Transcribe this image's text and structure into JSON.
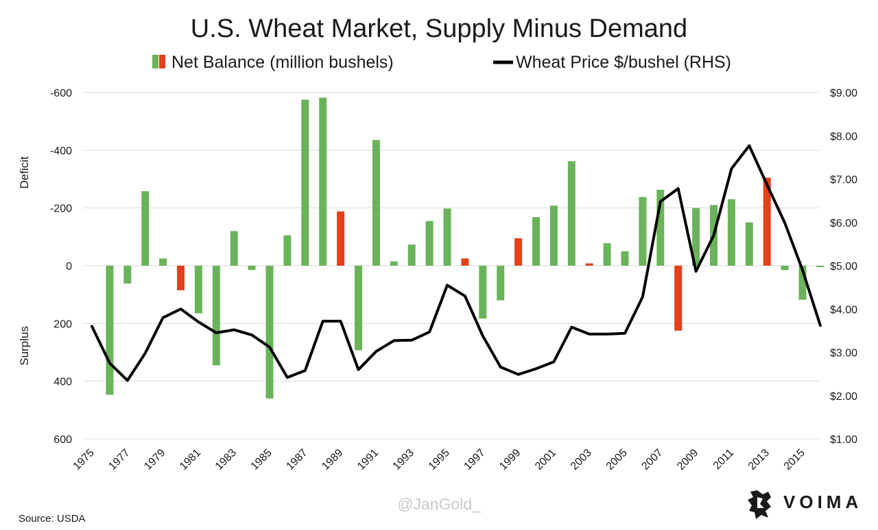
{
  "chart_data": {
    "type": "bar+line",
    "title": "U.S. Wheat Market, Supply Minus Demand",
    "legend": [
      {
        "label": "Net Balance (million bushels)",
        "swatch": [
          "#6ab35a",
          "#e3401b"
        ]
      },
      {
        "label": "Wheat Price $/bushel (RHS)",
        "swatch": [
          "#000000"
        ]
      }
    ],
    "left_axis": {
      "ticks": [
        -600,
        -400,
        -200,
        0,
        200,
        400,
        600
      ],
      "tick_labels": [
        "-600",
        "-400",
        "-200",
        "0",
        "200",
        "400",
        "600"
      ],
      "range": [
        -600,
        600
      ],
      "inverted": true,
      "side_labels": {
        "top": "Deficit",
        "bottom": "Surplus"
      }
    },
    "right_axis": {
      "ticks": [
        9,
        8,
        7,
        6,
        5,
        4,
        3,
        2,
        1
      ],
      "tick_labels": [
        "$9.00",
        "$8.00",
        "$7.00",
        "$6.00",
        "$5.00",
        "$4.00",
        "$3.00",
        "$2.00",
        "$1.00"
      ],
      "range": [
        1,
        9
      ]
    },
    "x_labels": [
      "1975",
      "1977",
      "1979",
      "1981",
      "1983",
      "1985",
      "1987",
      "1989",
      "1991",
      "1993",
      "1995",
      "1997",
      "1999",
      "2001",
      "2003",
      "2005",
      "2007",
      "2009",
      "2011",
      "2013",
      "2015"
    ],
    "years": [
      1975,
      1976,
      1977,
      1978,
      1979,
      1980,
      1981,
      1982,
      1983,
      1984,
      1985,
      1986,
      1987,
      1988,
      1989,
      1990,
      1991,
      1992,
      1993,
      1994,
      1995,
      1996,
      1997,
      1998,
      1999,
      2000,
      2001,
      2002,
      2003,
      2004,
      2005,
      2006,
      2007,
      2008,
      2009,
      2010,
      2011,
      2012,
      2013,
      2014,
      2015,
      2016
    ],
    "net_balance": [
      0,
      447,
      62,
      -258,
      -25,
      85,
      165,
      345,
      -120,
      15,
      460,
      -105,
      -575,
      -582,
      -188,
      293,
      -435,
      -15,
      -73,
      -155,
      -198,
      -25,
      183,
      120,
      -95,
      -168,
      -208,
      -362,
      -8,
      -78,
      -50,
      -238,
      -263,
      225,
      -200,
      -210,
      -230,
      -150,
      -305,
      15,
      118,
      5
    ],
    "net_balance_colors": [
      "green",
      "green",
      "green",
      "green",
      "green",
      "red",
      "green",
      "green",
      "green",
      "green",
      "green",
      "green",
      "green",
      "green",
      "red",
      "green",
      "green",
      "green",
      "green",
      "green",
      "green",
      "red",
      "green",
      "green",
      "red",
      "green",
      "green",
      "green",
      "red",
      "green",
      "green",
      "green",
      "green",
      "red",
      "green",
      "green",
      "green",
      "green",
      "red",
      "green",
      "green",
      "green"
    ],
    "price": [
      3.6,
      2.75,
      2.35,
      2.98,
      3.8,
      4.0,
      3.7,
      3.45,
      3.52,
      3.4,
      3.12,
      2.42,
      2.58,
      3.72,
      3.72,
      2.6,
      3.02,
      3.27,
      3.28,
      3.47,
      4.55,
      4.3,
      3.38,
      2.66,
      2.49,
      2.62,
      2.78,
      3.58,
      3.42,
      3.42,
      3.44,
      4.28,
      6.48,
      6.78,
      4.87,
      5.7,
      7.24,
      7.77,
      6.87,
      5.99,
      4.9,
      3.62
    ],
    "colors": {
      "green": "#6ab35a",
      "red": "#e3401b",
      "line": "#000000"
    }
  },
  "footer": {
    "source": "Source: USDA",
    "watermark": "@JanGold_",
    "brand": "VOIMA"
  }
}
